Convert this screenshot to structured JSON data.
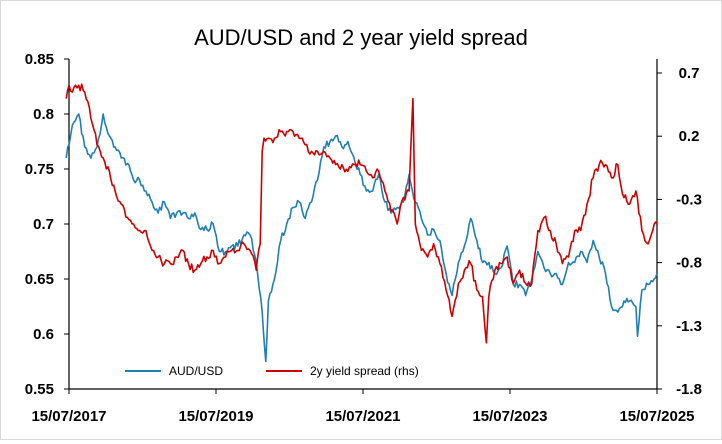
{
  "chart_data": {
    "type": "line",
    "title": "AUD/USD and 2 year yield spread",
    "xlabel": "",
    "ylabel": "",
    "y2label": "",
    "x_ticks": [
      "15/07/2017",
      "15/07/2019",
      "15/07/2021",
      "15/07/2023",
      "15/07/2025"
    ],
    "x_range": [
      "2017-07-15",
      "2025-07-15"
    ],
    "ylim_left": [
      0.55,
      0.85
    ],
    "ylim_right": [
      -1.8,
      0.7
    ],
    "y_ticks_left": [
      "0.85",
      "0.8",
      "0.75",
      "0.7",
      "0.65",
      "0.6",
      "0.55"
    ],
    "y_ticks_right": [
      "0.7",
      "0.2",
      "-0.3",
      "-0.8",
      "-1.3",
      "-1.8"
    ],
    "grid": false,
    "legend_position": "bottom-left",
    "series": [
      {
        "name": "AUD/USD",
        "axis": "left",
        "color": "#1f7fb4",
        "x": [
          "2017-07-01",
          "2017-08-01",
          "2017-09-01",
          "2017-10-01",
          "2017-11-01",
          "2017-12-01",
          "2018-01-01",
          "2018-02-01",
          "2018-03-01",
          "2018-04-01",
          "2018-05-01",
          "2018-06-01",
          "2018-07-01",
          "2018-08-01",
          "2018-09-01",
          "2018-10-01",
          "2018-11-01",
          "2018-12-01",
          "2019-01-01",
          "2019-02-01",
          "2019-03-01",
          "2019-04-01",
          "2019-05-01",
          "2019-06-01",
          "2019-07-01",
          "2019-08-01",
          "2019-09-01",
          "2019-10-01",
          "2019-11-01",
          "2019-12-01",
          "2020-01-01",
          "2020-02-01",
          "2020-03-01",
          "2020-03-19",
          "2020-04-01",
          "2020-05-01",
          "2020-06-01",
          "2020-07-01",
          "2020-08-01",
          "2020-09-01",
          "2020-10-01",
          "2020-11-01",
          "2020-12-01",
          "2021-01-01",
          "2021-02-01",
          "2021-03-01",
          "2021-04-01",
          "2021-05-01",
          "2021-06-01",
          "2021-07-01",
          "2021-08-01",
          "2021-09-01",
          "2021-10-01",
          "2021-11-01",
          "2021-12-01",
          "2022-01-01",
          "2022-02-01",
          "2022-03-01",
          "2022-04-01",
          "2022-05-01",
          "2022-06-01",
          "2022-07-01",
          "2022-08-01",
          "2022-09-01",
          "2022-10-01",
          "2022-11-01",
          "2022-12-01",
          "2023-01-01",
          "2023-02-01",
          "2023-03-01",
          "2023-04-01",
          "2023-05-01",
          "2023-06-01",
          "2023-07-01",
          "2023-08-01",
          "2023-09-01",
          "2023-10-01",
          "2023-11-01",
          "2023-12-01",
          "2024-01-01",
          "2024-02-01",
          "2024-03-01",
          "2024-04-01",
          "2024-05-01",
          "2024-06-01",
          "2024-07-01",
          "2024-08-01",
          "2024-09-01",
          "2024-10-01",
          "2024-11-01",
          "2024-12-01",
          "2025-01-01",
          "2025-02-01",
          "2025-03-01",
          "2025-04-01",
          "2025-04-09",
          "2025-05-01",
          "2025-06-01",
          "2025-07-01",
          "2025-07-15"
        ],
        "values": [
          0.76,
          0.79,
          0.8,
          0.77,
          0.76,
          0.77,
          0.8,
          0.78,
          0.77,
          0.76,
          0.755,
          0.74,
          0.74,
          0.73,
          0.72,
          0.71,
          0.72,
          0.705,
          0.71,
          0.71,
          0.705,
          0.71,
          0.695,
          0.695,
          0.7,
          0.675,
          0.675,
          0.68,
          0.68,
          0.69,
          0.69,
          0.665,
          0.62,
          0.575,
          0.63,
          0.65,
          0.685,
          0.7,
          0.715,
          0.72,
          0.705,
          0.72,
          0.74,
          0.77,
          0.775,
          0.78,
          0.77,
          0.775,
          0.76,
          0.745,
          0.73,
          0.73,
          0.745,
          0.72,
          0.71,
          0.715,
          0.72,
          0.745,
          0.72,
          0.705,
          0.69,
          0.695,
          0.685,
          0.655,
          0.635,
          0.665,
          0.68,
          0.705,
          0.685,
          0.665,
          0.665,
          0.655,
          0.66,
          0.68,
          0.645,
          0.645,
          0.635,
          0.65,
          0.675,
          0.66,
          0.655,
          0.655,
          0.645,
          0.665,
          0.665,
          0.675,
          0.665,
          0.685,
          0.67,
          0.655,
          0.625,
          0.62,
          0.63,
          0.63,
          0.625,
          0.598,
          0.64,
          0.645,
          0.65,
          0.655
        ]
      },
      {
        "name": "2y yield spread (rhs)",
        "axis": "right",
        "color": "#cc0000",
        "x": [
          "2017-07-01",
          "2017-07-15",
          "2017-08-01",
          "2017-09-01",
          "2017-10-01",
          "2017-11-01",
          "2017-12-01",
          "2018-01-01",
          "2018-02-01",
          "2018-03-01",
          "2018-04-01",
          "2018-05-01",
          "2018-06-01",
          "2018-07-01",
          "2018-08-01",
          "2018-09-01",
          "2018-10-01",
          "2018-11-01",
          "2018-12-01",
          "2019-01-01",
          "2019-02-01",
          "2019-03-01",
          "2019-04-01",
          "2019-05-01",
          "2019-06-01",
          "2019-07-01",
          "2019-08-01",
          "2019-09-01",
          "2019-10-01",
          "2019-11-01",
          "2019-12-01",
          "2020-01-01",
          "2020-02-01",
          "2020-02-20",
          "2020-03-01",
          "2020-03-10",
          "2020-04-01",
          "2020-05-01",
          "2020-06-01",
          "2020-07-01",
          "2020-08-01",
          "2020-09-01",
          "2020-10-01",
          "2020-11-01",
          "2020-12-01",
          "2021-01-01",
          "2021-02-01",
          "2021-03-01",
          "2021-04-01",
          "2021-05-01",
          "2021-06-01",
          "2021-07-01",
          "2021-08-01",
          "2021-09-01",
          "2021-10-01",
          "2021-11-01",
          "2021-12-01",
          "2022-01-01",
          "2022-02-01",
          "2022-03-01",
          "2022-03-20",
          "2022-04-01",
          "2022-05-01",
          "2022-06-01",
          "2022-07-01",
          "2022-08-01",
          "2022-09-01",
          "2022-10-01",
          "2022-11-01",
          "2022-12-01",
          "2023-01-01",
          "2023-02-01",
          "2023-03-01",
          "2023-03-20",
          "2023-04-01",
          "2023-05-01",
          "2023-06-01",
          "2023-07-01",
          "2023-08-01",
          "2023-09-01",
          "2023-10-01",
          "2023-11-01",
          "2023-12-01",
          "2024-01-01",
          "2024-02-01",
          "2024-03-01",
          "2024-04-01",
          "2024-05-01",
          "2024-06-01",
          "2024-07-01",
          "2024-08-01",
          "2024-09-01",
          "2024-10-01",
          "2024-11-01",
          "2024-12-01",
          "2025-01-01",
          "2025-02-01",
          "2025-03-01",
          "2025-04-01",
          "2025-05-01",
          "2025-06-01",
          "2025-07-01",
          "2025-07-15"
        ],
        "values": [
          0.4,
          0.5,
          0.45,
          0.5,
          0.45,
          0.25,
          0.05,
          -0.05,
          -0.15,
          -0.3,
          -0.4,
          -0.5,
          -0.55,
          -0.6,
          -0.6,
          -0.75,
          -0.8,
          -0.85,
          -0.85,
          -0.8,
          -0.75,
          -0.85,
          -0.9,
          -0.85,
          -0.8,
          -0.75,
          -0.85,
          -0.8,
          -0.75,
          -0.75,
          -0.7,
          -0.75,
          -0.9,
          -0.7,
          0.0,
          0.1,
          0.1,
          0.1,
          0.15,
          0.15,
          0.15,
          0.1,
          0.05,
          0.0,
          0.0,
          0.0,
          -0.05,
          -0.1,
          -0.1,
          -0.15,
          -0.1,
          -0.1,
          -0.15,
          -0.2,
          -0.15,
          -0.3,
          -0.45,
          -0.55,
          -0.35,
          -0.3,
          0.4,
          -0.55,
          -0.75,
          -0.8,
          -0.7,
          -0.85,
          -1.05,
          -1.25,
          -1.0,
          -0.9,
          -0.85,
          -1.05,
          -1.1,
          -1.45,
          -1.1,
          -0.9,
          -0.85,
          -0.8,
          -1.0,
          -0.9,
          -1.0,
          -1.0,
          -0.6,
          -0.5,
          -0.6,
          -0.7,
          -0.85,
          -0.8,
          -0.6,
          -0.6,
          -0.4,
          -0.2,
          -0.1,
          -0.1,
          -0.2,
          -0.1,
          -0.35,
          -0.4,
          -0.3,
          -0.6,
          -0.7,
          -0.55,
          -0.55
        ]
      }
    ]
  }
}
